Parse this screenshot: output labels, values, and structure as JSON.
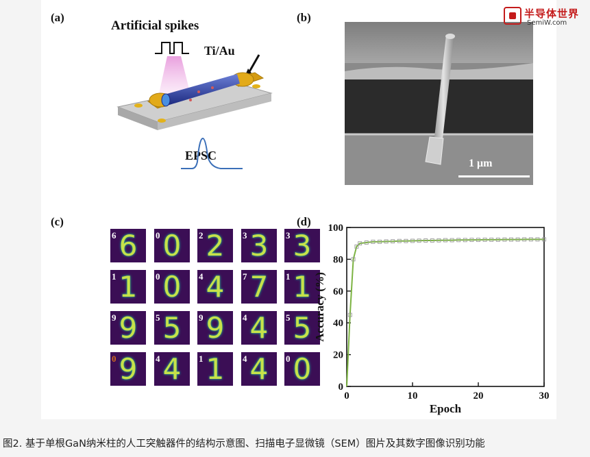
{
  "watermark": {
    "name": "半导体世界",
    "url": "SemiW.com"
  },
  "panels": {
    "a": {
      "label": "(a)",
      "spikes_label": "Artificial spikes",
      "electrode_label": "Ti/Au",
      "output_label": "EPSC"
    },
    "b": {
      "label": "(b)",
      "scale_bar": "1 μm"
    },
    "c": {
      "label": "(c)",
      "digits": [
        {
          "label": "6",
          "glyph": "6"
        },
        {
          "label": "0",
          "glyph": "0"
        },
        {
          "label": "2",
          "glyph": "2"
        },
        {
          "label": "3",
          "glyph": "3"
        },
        {
          "label": "3",
          "glyph": "3"
        },
        {
          "label": "1",
          "glyph": "1"
        },
        {
          "label": "0",
          "glyph": "0"
        },
        {
          "label": "4",
          "glyph": "4"
        },
        {
          "label": "7",
          "glyph": "7"
        },
        {
          "label": "1",
          "glyph": "1"
        },
        {
          "label": "9",
          "glyph": "9"
        },
        {
          "label": "5",
          "glyph": "5"
        },
        {
          "label": "9",
          "glyph": "9"
        },
        {
          "label": "4",
          "glyph": "4"
        },
        {
          "label": "5",
          "glyph": "5"
        },
        {
          "label": "0",
          "glyph": "9"
        },
        {
          "label": "4",
          "glyph": "4"
        },
        {
          "label": "1",
          "glyph": "1"
        },
        {
          "label": "4",
          "glyph": "4"
        },
        {
          "label": "0",
          "glyph": "0"
        }
      ],
      "mislabel_color": "#d2691e"
    },
    "d": {
      "label": "(d)"
    }
  },
  "chart_data": {
    "type": "line",
    "xlabel": "Epoch",
    "ylabel": "Accuracy (%)",
    "xlim": [
      0,
      30
    ],
    "ylim": [
      0,
      100
    ],
    "xticks": [
      0,
      10,
      20,
      30
    ],
    "yticks": [
      0,
      20,
      40,
      60,
      80,
      100
    ],
    "line_color": "#7cb342",
    "marker_color": "#999999",
    "x": [
      0,
      0.5,
      1,
      1.5,
      2,
      3,
      4,
      5,
      6,
      7,
      8,
      9,
      10,
      11,
      12,
      13,
      14,
      15,
      16,
      17,
      18,
      19,
      20,
      21,
      22,
      23,
      24,
      25,
      26,
      27,
      28,
      29,
      30
    ],
    "y": [
      0,
      45,
      80,
      88,
      90,
      90.5,
      91,
      91,
      91.2,
      91.3,
      91.5,
      91.5,
      91.6,
      91.7,
      91.8,
      91.8,
      91.9,
      92,
      92,
      92.1,
      92.1,
      92.2,
      92.2,
      92.3,
      92.3,
      92.3,
      92.4,
      92.4,
      92.4,
      92.5,
      92.5,
      92.5,
      92.5
    ],
    "grid": false
  },
  "caption": "图2. 基于单根GaN纳米柱的人工突触器件的结构示意图、扫描电子显微镜（SEM）图片及其数字图像识别功能"
}
